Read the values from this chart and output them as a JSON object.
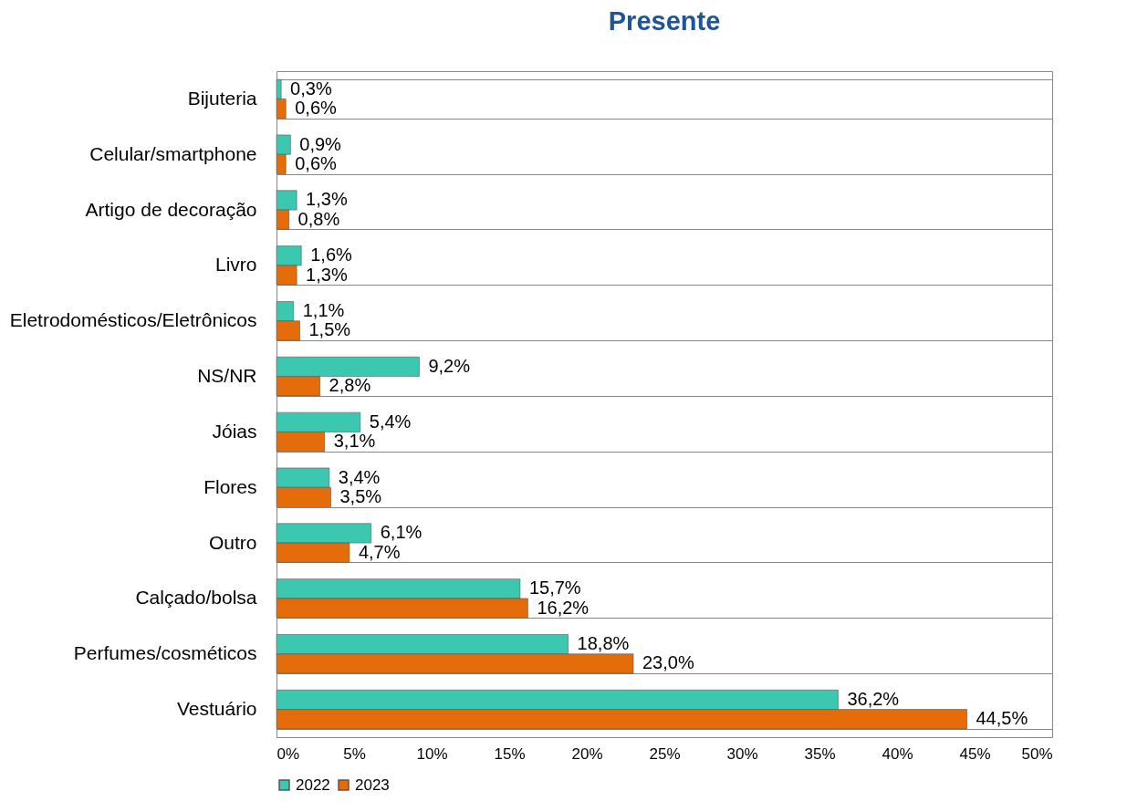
{
  "chart_data": {
    "type": "bar",
    "title": "Presente",
    "orientation": "horizontal",
    "categories": [
      "Bijuteria",
      "Celular/smartphone",
      "Artigo de decoração",
      "Livro",
      "Eletrodomésticos/Eletrônicos",
      "NS/NR",
      "Jóias",
      "Flores",
      "Outro",
      "Calçado/bolsa",
      "Perfumes/cosméticos",
      "Vestuário"
    ],
    "series": [
      {
        "name": "2022",
        "color": "#3cc8b0",
        "values": [
          0.3,
          0.9,
          1.3,
          1.6,
          1.1,
          9.2,
          5.4,
          3.4,
          6.1,
          15.7,
          18.8,
          36.2
        ],
        "value_labels": [
          "0,3%",
          "0,9%",
          "1,3%",
          "1,6%",
          "1,1%",
          "9,2%",
          "5,4%",
          "3,4%",
          "6,1%",
          "15,7%",
          "18,8%",
          "36,2%"
        ]
      },
      {
        "name": "2023",
        "color": "#e46c0a",
        "values": [
          0.6,
          0.6,
          0.8,
          1.3,
          1.5,
          2.8,
          3.1,
          3.5,
          4.7,
          16.2,
          23.0,
          44.5
        ],
        "value_labels": [
          "0,6%",
          "0,6%",
          "0,8%",
          "1,3%",
          "1,5%",
          "2,8%",
          "3,1%",
          "3,5%",
          "4,7%",
          "16,2%",
          "23,0%",
          "44,5%"
        ]
      }
    ],
    "xlim": [
      0,
      50
    ],
    "xticks": [
      {
        "value": 0,
        "label": "0%"
      },
      {
        "value": 5,
        "label": "5%"
      },
      {
        "value": 10,
        "label": "10%"
      },
      {
        "value": 15,
        "label": "15%"
      },
      {
        "value": 20,
        "label": "20%"
      },
      {
        "value": 25,
        "label": "25%"
      },
      {
        "value": 30,
        "label": "30%"
      },
      {
        "value": 35,
        "label": "35%"
      },
      {
        "value": 40,
        "label": "40%"
      },
      {
        "value": 45,
        "label": "45%"
      },
      {
        "value": 50,
        "label": "50%"
      }
    ],
    "grid": "y",
    "legend": "bottom"
  }
}
